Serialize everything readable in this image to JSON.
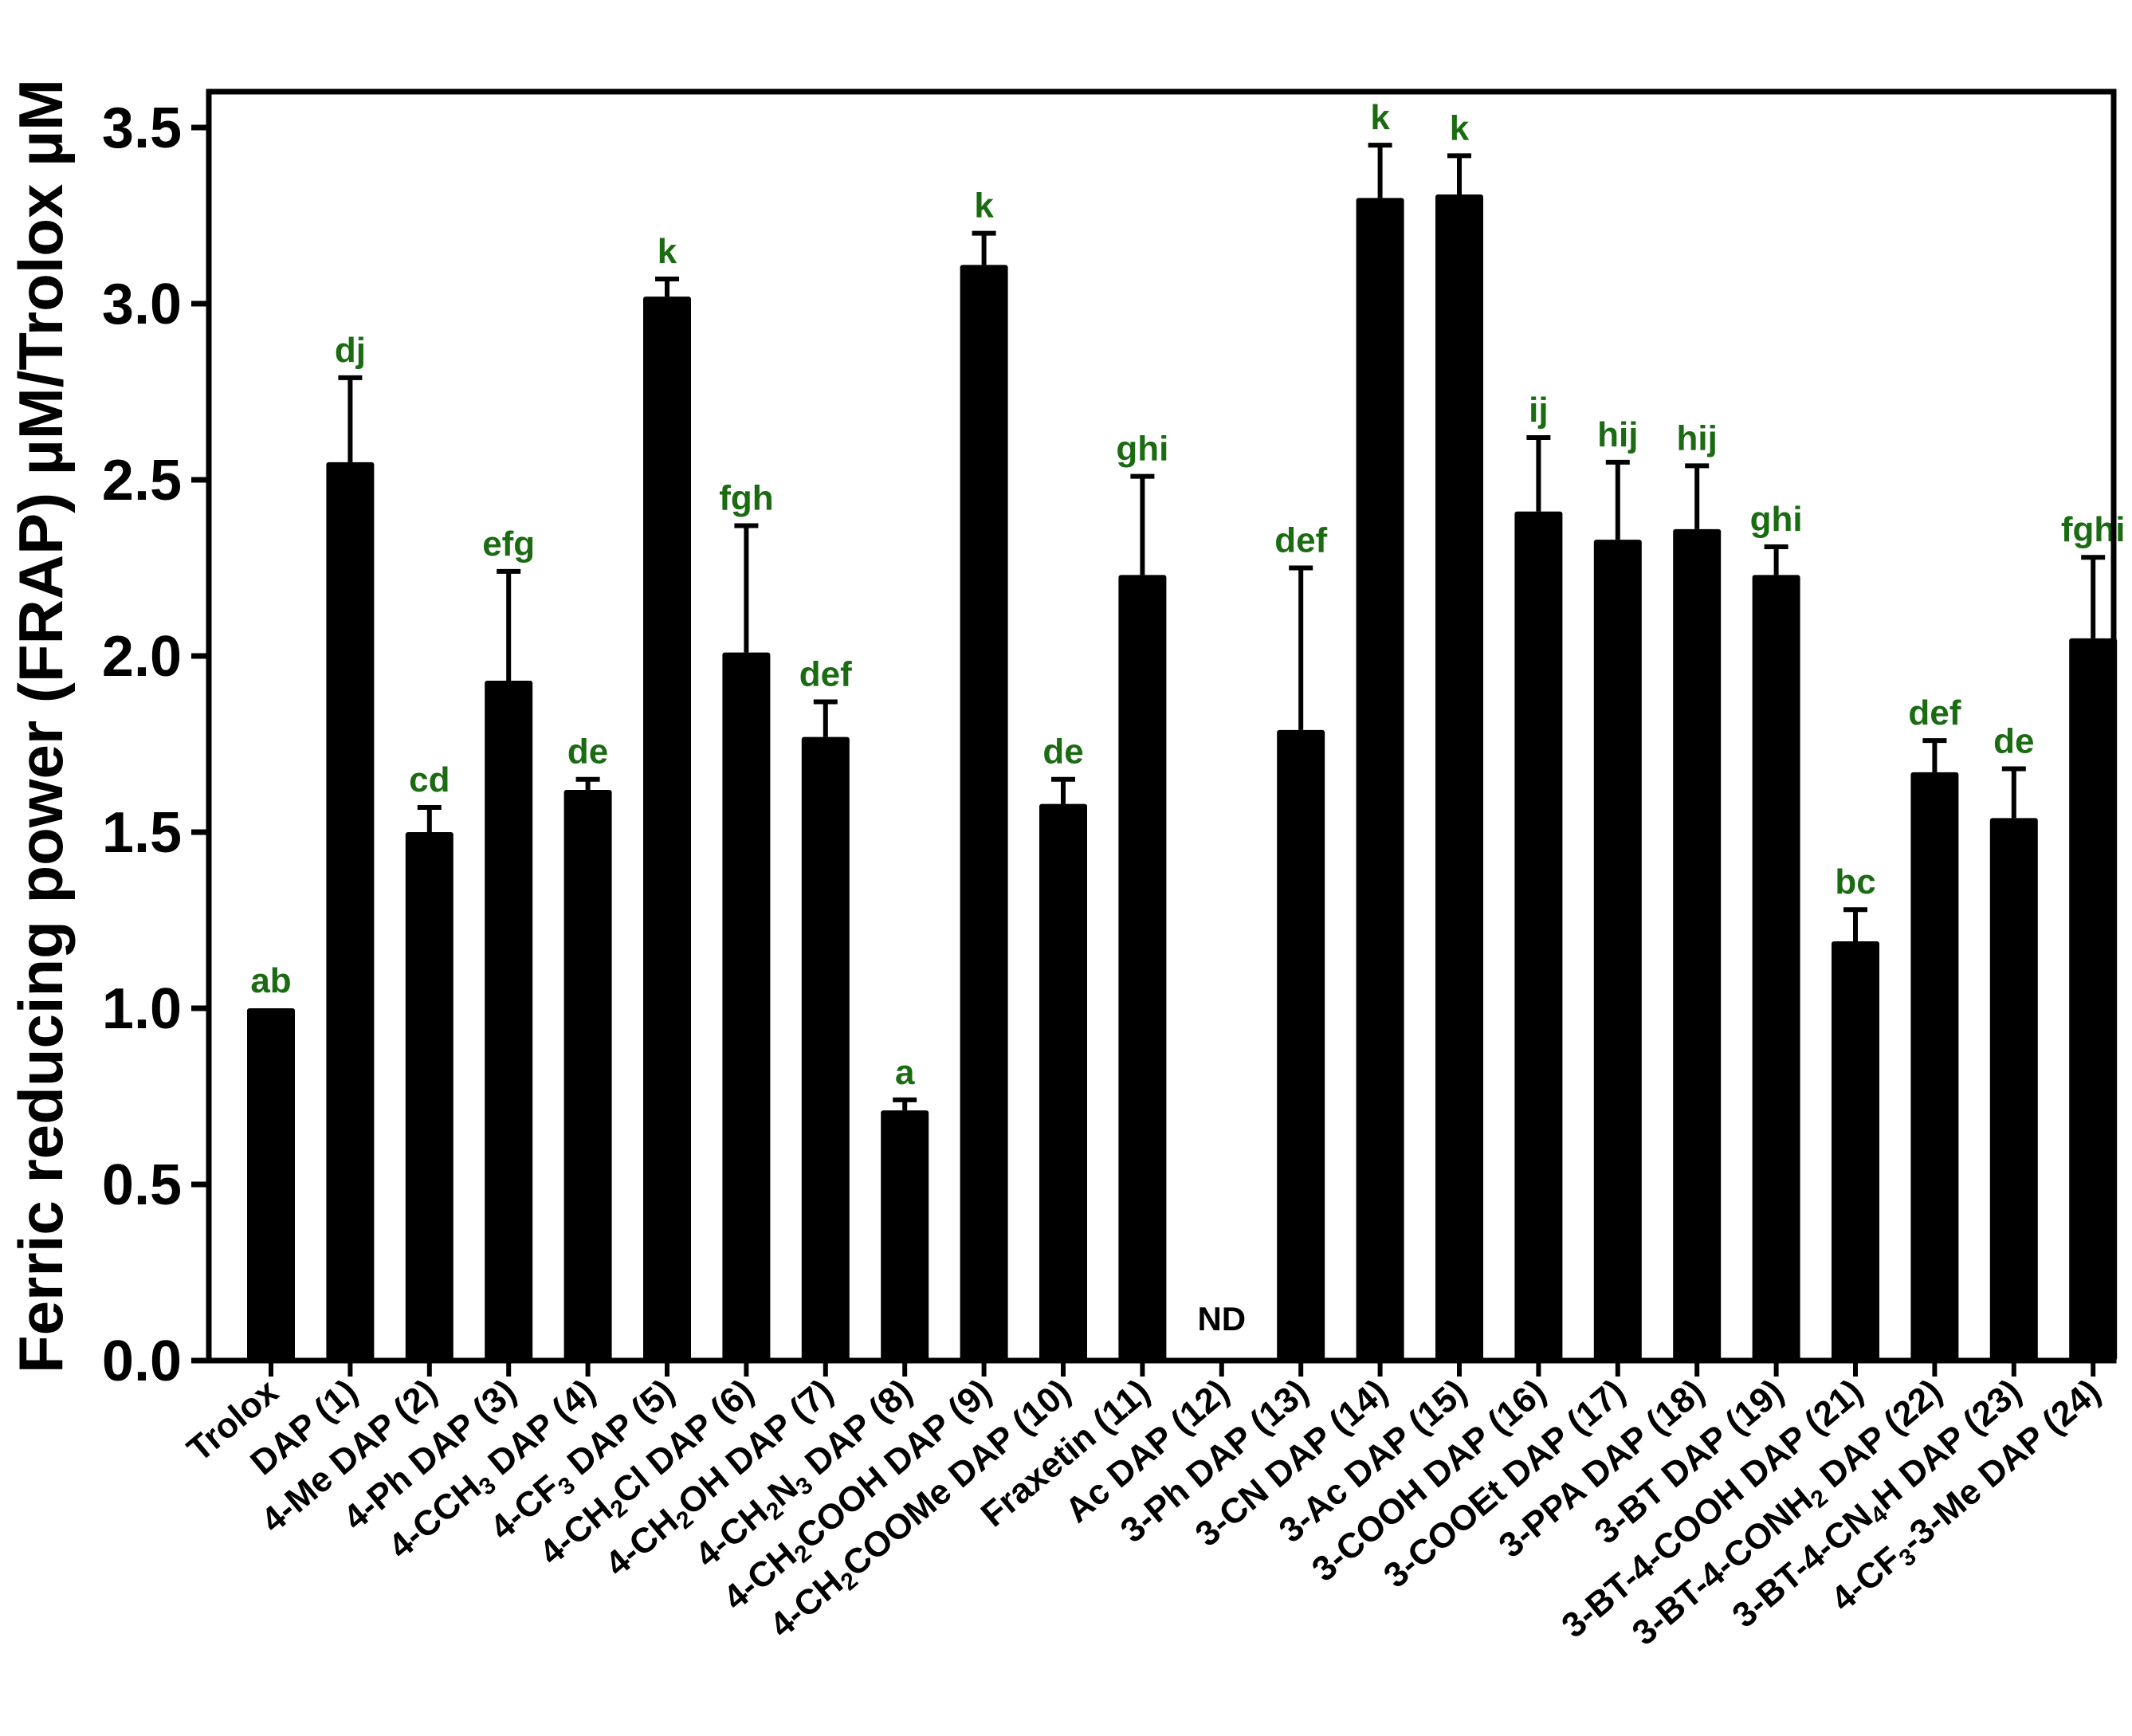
{
  "chart_data": {
    "type": "bar",
    "title": "",
    "xlabel": "",
    "ylabel": "Ferric reducing power (FRAP) µM/Trolox µM",
    "ylim": [
      0,
      3.6
    ],
    "yticks": [
      "0.0",
      "0.5",
      "1.0",
      "1.5",
      "2.0",
      "2.5",
      "3.0",
      "3.5"
    ],
    "ytick_values": [
      0,
      0.5,
      1.0,
      1.5,
      2.0,
      2.5,
      3.0,
      3.5
    ],
    "grid": false,
    "bar_color": "#000000",
    "annotation_color": "#1a6b12",
    "categories": [
      "Trolox",
      "DAP (1)",
      "4-Me DAP (2)",
      "4-Ph DAP (3)",
      "4-CCH3 DAP (4)",
      "4-CF3 DAP (5)",
      "4-CH2Cl DAP (6)",
      "4-CH2OH DAP (7)",
      "4-CH2N3 DAP (8)",
      "4-CH2COOH DAP (9)",
      "4-CH2COOMe DAP (10)",
      "Fraxetin (11)",
      "Ac DAP (12)",
      "3-Ph DAP (13)",
      "3-CN DAP (14)",
      "3-Ac DAP (15)",
      "3-COOH DAP (16)",
      "3-COOEt DAP (17)",
      "3-PPA DAP (18)",
      "3-BT DAP (19)",
      "3-BT-4-COOH DAP (21)",
      "3-BT-4-CONH2 DAP (22)",
      "3-BT-4-CN4H DAP (23)",
      "4-CF3-3-Me DAP (24)"
    ],
    "category_labels": [
      [
        "Trolox"
      ],
      [
        "DAP (1)"
      ],
      [
        "4-Me DAP (2)"
      ],
      [
        "4-Ph DAP (3)"
      ],
      [
        "4-CCH",
        {
          "sub": "3"
        },
        " DAP (4)"
      ],
      [
        "4-CF",
        {
          "sub": "3"
        },
        " DAP (5)"
      ],
      [
        "4-CH",
        {
          "sub": "2"
        },
        "Cl DAP (6)"
      ],
      [
        "4-CH",
        {
          "sub": "2"
        },
        "OH DAP (7)"
      ],
      [
        "4-CH",
        {
          "sub": "2"
        },
        "N",
        {
          "sub": "3"
        },
        " DAP (8)"
      ],
      [
        "4-CH",
        {
          "sub": "2"
        },
        "COOH DAP (9)"
      ],
      [
        "4-CH",
        {
          "sub": "2"
        },
        "COOMe DAP (10)"
      ],
      [
        "Fraxetin (11)"
      ],
      [
        "Ac DAP (12)"
      ],
      [
        "3-Ph DAP (13)"
      ],
      [
        "3-CN DAP (14)"
      ],
      [
        "3-Ac DAP (15)"
      ],
      [
        "3-COOH DAP (16)"
      ],
      [
        "3-COOEt DAP (17)"
      ],
      [
        "3-PPA DAP (18)"
      ],
      [
        "3-BT DAP (19)"
      ],
      [
        "3-BT-4-COOH DAP (21)"
      ],
      [
        "3-BT-4-CONH",
        {
          "sub": "2"
        },
        " DAP (22)"
      ],
      [
        "3-BT-4-CN",
        {
          "sub": "4"
        },
        "H DAP (23)"
      ],
      [
        "4-CF",
        {
          "sub": "3"
        },
        "-3-Me DAP (24)"
      ]
    ],
    "values": [
      1.0,
      2.55,
      1.5,
      1.93,
      1.62,
      3.02,
      2.01,
      1.77,
      0.71,
      3.11,
      1.58,
      2.23,
      0,
      1.79,
      3.3,
      3.31,
      2.41,
      2.33,
      2.36,
      2.23,
      1.19,
      1.67,
      1.54,
      2.05
    ],
    "errors": [
      0,
      0.24,
      0.07,
      0.31,
      0.03,
      0.05,
      0.36,
      0.1,
      0.03,
      0.09,
      0.07,
      0.28,
      0,
      0.46,
      0.15,
      0.11,
      0.21,
      0.22,
      0.18,
      0.08,
      0.09,
      0.09,
      0.14,
      0.23
    ],
    "significance": [
      "ab",
      "dj",
      "cd",
      "efg",
      "de",
      "k",
      "fgh",
      "def",
      "a",
      "k",
      "de",
      "ghi",
      "",
      "def",
      "k",
      "k",
      "ij",
      "hij",
      "hij",
      "ghi",
      "bc",
      "def",
      "de",
      "fghi"
    ],
    "not_determined_label": "ND",
    "not_determined_index": 12
  }
}
